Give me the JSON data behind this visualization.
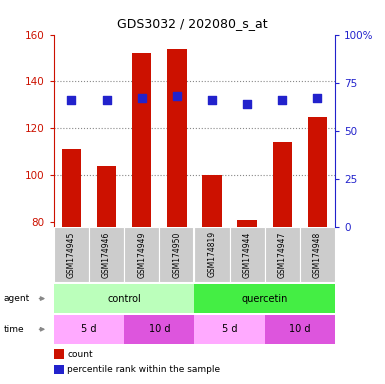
{
  "title": "GDS3032 / 202080_s_at",
  "samples": [
    "GSM174945",
    "GSM174946",
    "GSM174949",
    "GSM174950",
    "GSM174819",
    "GSM174944",
    "GSM174947",
    "GSM174948"
  ],
  "counts": [
    111,
    104,
    152,
    154,
    100,
    81,
    114,
    125
  ],
  "percentiles": [
    66,
    66,
    67,
    68,
    66,
    64,
    66,
    67
  ],
  "ymin": 78,
  "ymax": 160,
  "yticks_left": [
    80,
    100,
    120,
    140,
    160
  ],
  "yticks_right": [
    0,
    25,
    50,
    75,
    100
  ],
  "bar_color": "#cc1100",
  "dot_color": "#2222cc",
  "agent_groups": [
    {
      "label": "control",
      "start": 0,
      "end": 4,
      "color": "#bbffbb"
    },
    {
      "label": "quercetin",
      "start": 4,
      "end": 8,
      "color": "#44ee44"
    }
  ],
  "time_groups": [
    {
      "label": "5 d",
      "start": 0,
      "end": 2,
      "color": "#ffaaff"
    },
    {
      "label": "10 d",
      "start": 2,
      "end": 4,
      "color": "#dd55dd"
    },
    {
      "label": "5 d",
      "start": 4,
      "end": 6,
      "color": "#ffaaff"
    },
    {
      "label": "10 d",
      "start": 6,
      "end": 8,
      "color": "#dd55dd"
    }
  ],
  "legend_count_label": "count",
  "legend_pct_label": "percentile rank within the sample",
  "bar_width": 0.55,
  "dot_size": 28,
  "grid_color": "#888888",
  "tick_color_left": "#cc1100",
  "tick_color_right": "#2222cc",
  "bg_color": "#ffffff",
  "sample_bg_color": "#cccccc",
  "sample_fontsize": 5.5,
  "label_fontsize": 6.5,
  "group_fontsize": 7.0,
  "title_fontsize": 9
}
